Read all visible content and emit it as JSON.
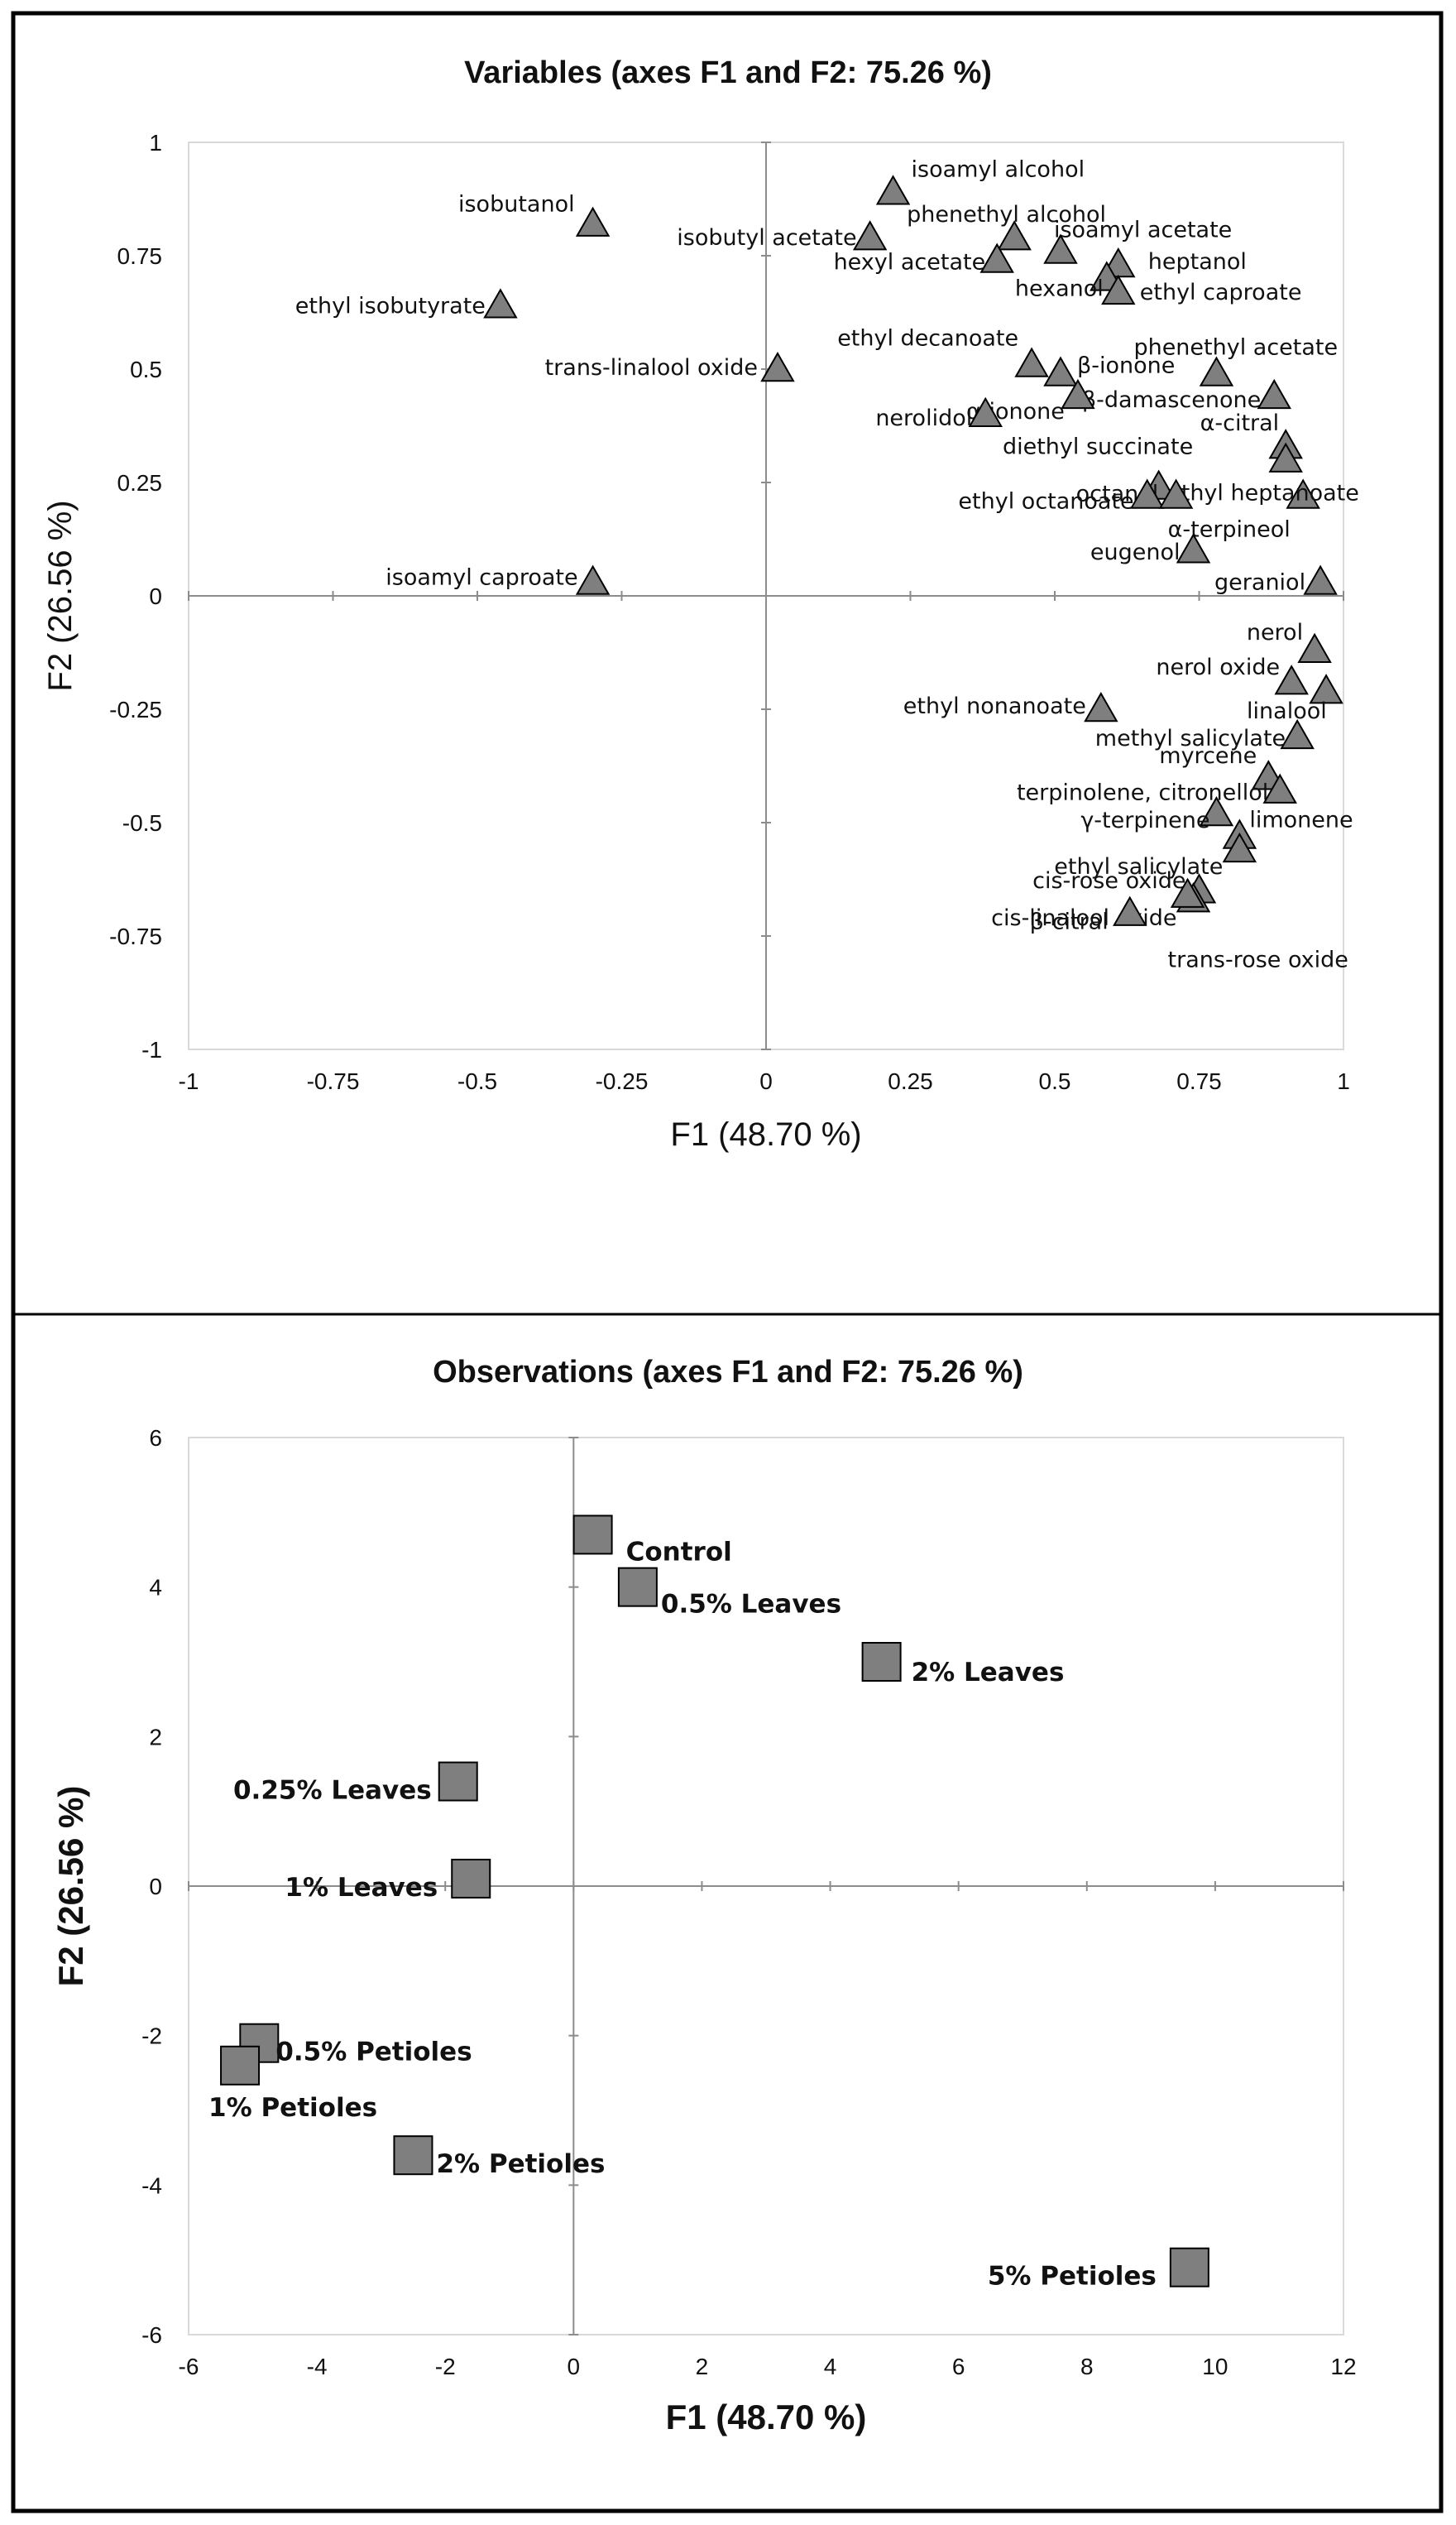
{
  "chart_data": [
    {
      "type": "scatter",
      "title": "Variables (axes F1 and F2: 75.26 %)",
      "xlabel": "F1 (48.70 %)",
      "ylabel": "F2 (26.56 %)",
      "xlim": [
        -1,
        1
      ],
      "ylim": [
        -1,
        1
      ],
      "xticks": [
        "-1",
        "-0.75",
        "-0.5",
        "-0.25",
        "0",
        "0.25",
        "0.5",
        "0.75",
        "1"
      ],
      "yticks": [
        "-1",
        "-0.75",
        "-0.5",
        "-0.25",
        "0",
        "0.25",
        "0.5",
        "0.75",
        "1"
      ],
      "grid": false,
      "marker": "triangle",
      "marker_color": "#7f7f7f",
      "points": [
        {
          "label": "isoamyl alcohol",
          "x": 0.22,
          "y": 0.89
        },
        {
          "label": "isobutanol",
          "x": -0.3,
          "y": 0.82
        },
        {
          "label": "isobutyl acetate",
          "x": 0.18,
          "y": 0.79
        },
        {
          "label": "phenethyl alcohol",
          "x": 0.43,
          "y": 0.79
        },
        {
          "label": "isoamyl acetate",
          "x": 0.51,
          "y": 0.76
        },
        {
          "label": "hexyl acetate",
          "x": 0.4,
          "y": 0.74
        },
        {
          "label": "heptanol",
          "x": 0.61,
          "y": 0.73
        },
        {
          "label": "hexanol",
          "x": 0.59,
          "y": 0.7
        },
        {
          "label": "ethyl caproate",
          "x": 0.61,
          "y": 0.67
        },
        {
          "label": "ethyl isobutyrate",
          "x": -0.46,
          "y": 0.64
        },
        {
          "label": "trans-linalool oxide",
          "x": 0.02,
          "y": 0.5
        },
        {
          "label": "ethyl decanoate",
          "x": 0.46,
          "y": 0.51
        },
        {
          "label": "β-ionone",
          "x": 0.51,
          "y": 0.49
        },
        {
          "label": "phenethyl acetate",
          "x": 0.78,
          "y": 0.49
        },
        {
          "label": "β-damascenone",
          "x": 0.88,
          "y": 0.44
        },
        {
          "label": "α-ionone",
          "x": 0.54,
          "y": 0.44
        },
        {
          "label": "nerolidol",
          "x": 0.38,
          "y": 0.4
        },
        {
          "label": "α-citral",
          "x": 0.9,
          "y": 0.33
        },
        {
          "label": "diethyl succinate",
          "x": 0.9,
          "y": 0.3
        },
        {
          "label": "octanol",
          "x": 0.68,
          "y": 0.24
        },
        {
          "label": "ethyl heptanoate",
          "x": 0.93,
          "y": 0.22
        },
        {
          "label": "ethyl octanoate",
          "x": 0.66,
          "y": 0.22
        },
        {
          "label": "α-terpineol",
          "x": 0.71,
          "y": 0.22
        },
        {
          "label": "eugenol",
          "x": 0.74,
          "y": 0.1
        },
        {
          "label": "geraniol",
          "x": 0.96,
          "y": 0.03
        },
        {
          "label": "isoamyl caproate",
          "x": -0.3,
          "y": 0.03
        },
        {
          "label": "nerol",
          "x": 0.95,
          "y": -0.12
        },
        {
          "label": "nerol oxide",
          "x": 0.91,
          "y": -0.19
        },
        {
          "label": "linalool",
          "x": 0.97,
          "y": -0.21
        },
        {
          "label": "ethyl nonanoate",
          "x": 0.58,
          "y": -0.25
        },
        {
          "label": "methyl salicylate",
          "x": 0.92,
          "y": -0.31
        },
        {
          "label": "myrcene",
          "x": 0.87,
          "y": -0.4
        },
        {
          "label": "terpinolene, citronellol",
          "x": 0.89,
          "y": -0.43
        },
        {
          "label": "γ-terpinene",
          "x": 0.78,
          "y": -0.48
        },
        {
          "label": "limonene",
          "x": 0.82,
          "y": -0.53
        },
        {
          "label": "ethyl salicylate",
          "x": 0.82,
          "y": -0.56
        },
        {
          "label": "cis-rose oxide",
          "x": 0.75,
          "y": -0.65
        },
        {
          "label": "cis-linalool oxide",
          "x": 0.74,
          "y": -0.67
        },
        {
          "label": "trans-rose oxide",
          "x": 0.73,
          "y": -0.66
        },
        {
          "label": "β-citral",
          "x": 0.63,
          "y": -0.7
        }
      ]
    },
    {
      "type": "scatter",
      "title": "Observations (axes F1 and F2: 75.26 %)",
      "xlabel": "F1 (48.70 %)",
      "ylabel": "F2 (26.56 %)",
      "xlim": [
        -6,
        12
      ],
      "ylim": [
        -6,
        6
      ],
      "xticks": [
        "-6",
        "-4",
        "-2",
        "0",
        "2",
        "4",
        "6",
        "8",
        "10",
        "12"
      ],
      "yticks": [
        "-6",
        "-4",
        "-2",
        "0",
        "2",
        "4",
        "6"
      ],
      "grid": false,
      "marker": "square",
      "marker_color": "#7f7f7f",
      "points": [
        {
          "label": "Control",
          "x": 0.3,
          "y": 4.7
        },
        {
          "label": "0.5% Leaves",
          "x": 1.0,
          "y": 4.0
        },
        {
          "label": "2% Leaves",
          "x": 4.8,
          "y": 3.0
        },
        {
          "label": "0.25% Leaves",
          "x": -1.8,
          "y": 1.4
        },
        {
          "label": "1% Leaves",
          "x": -1.6,
          "y": 0.1
        },
        {
          "label": "0.5% Petioles",
          "x": -4.9,
          "y": -2.1
        },
        {
          "label": "1% Petioles",
          "x": -5.2,
          "y": -2.4
        },
        {
          "label": "2% Petioles",
          "x": -2.5,
          "y": -3.6
        },
        {
          "label": "5% Petioles",
          "x": 9.6,
          "y": -5.1
        }
      ]
    }
  ]
}
